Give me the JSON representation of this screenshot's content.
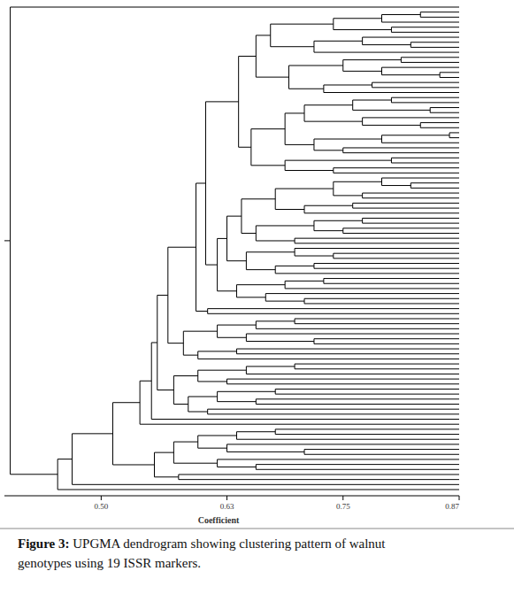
{
  "chart_data": {
    "type": "dendrogram",
    "xlabel": "Coefficient",
    "xlim": [
      0.4,
      0.87
    ],
    "xticks": [
      {
        "value": 0.5,
        "label": "0.50"
      },
      0.63,
      0.75,
      0.87
    ],
    "color": "#000000",
    "tree": [
      0.406,
      null,
      [
        0.455,
        [
          0.47,
          [
            0.512,
            [
              0.54,
              [
                0.552,
                [
                  0.558,
                  [
                    0.569,
                    [
                      0.598,
                      [
                        0.608,
                        [
                          0.642,
                          [
                            0.66,
                            [
                              0.675,
                              [
                                0.74,
                                [
                                  0.79,
                                  [
                                    0.83,
                                    null,
                                    null
                                  ],
                                  null
                                ],
                                [
                                  0.8,
                                  null,
                                  null
                                ]
                              ],
                              [
                                0.72,
                                [
                                  0.77,
                                  null,
                                  [
                                    0.82,
                                    null,
                                    null
                                  ]
                                ],
                                null
                              ]
                            ],
                            [
                              0.694,
                              [
                                0.75,
                                [
                                  0.81,
                                  null,
                                  null
                                ],
                                [
                                  0.79,
                                  null,
                                  [
                                    0.85,
                                    null,
                                    null
                                  ]
                                ]
                              ],
                              [
                                0.73,
                                [
                                  0.78,
                                  null,
                                  null
                                ],
                                null
                              ]
                            ]
                          ],
                          [
                            0.655,
                            [
                              0.69,
                              [
                                0.71,
                                [
                                  0.76,
                                  [
                                    0.8,
                                    null,
                                    null
                                  ],
                                  [
                                    0.84,
                                    null,
                                    null
                                  ]
                                ],
                                [
                                  0.77,
                                  null,
                                  [
                                    0.83,
                                    null,
                                    null
                                  ]
                                ]
                              ],
                              [
                                0.72,
                                [
                                  0.79,
                                  [
                                    0.86,
                                    null,
                                    null
                                  ],
                                  null
                                ],
                                [
                                  0.75,
                                  null,
                                  null
                                ]
                              ]
                            ],
                            [
                              0.69,
                              [
                                0.8,
                                null,
                                null
                              ],
                              [
                                0.74,
                                null,
                                null
                              ]
                            ]
                          ]
                        ],
                        [
                          0.62,
                          [
                            0.63,
                            [
                              0.645,
                              [
                                0.68,
                                [
                                  0.74,
                                  [
                                    0.79,
                                    null,
                                    [
                                      0.82,
                                      null,
                                      null
                                    ]
                                  ],
                                  [
                                    0.77,
                                    null,
                                    null
                                  ]
                                ],
                                [
                                  0.71,
                                  [
                                    0.76,
                                    null,
                                    null
                                  ],
                                  null
                                ]
                              ],
                              [
                                0.66,
                                [
                                  0.72,
                                  [
                                    0.77,
                                    null,
                                    null
                                  ],
                                  [
                                    0.75,
                                    null,
                                    null
                                  ]
                                ],
                                [
                                  0.7,
                                  null,
                                  null
                                ]
                              ]
                            ],
                            [
                              0.65,
                              [
                                0.7,
                                null,
                                [
                                  0.74,
                                  null,
                                  null
                                ]
                              ],
                              [
                                0.68,
                                [
                                  0.72,
                                  null,
                                  null
                                ],
                                null
                              ]
                            ]
                          ],
                          [
                            0.64,
                            [
                              0.69,
                              [
                                0.73,
                                null,
                                null
                              ],
                              null
                            ],
                            [
                              0.67,
                              null,
                              [
                                0.71,
                                null,
                                null
                              ]
                            ]
                          ]
                        ]
                      ],
                      [
                        0.61,
                        null,
                        null
                      ]
                    ],
                    [
                      0.585,
                      [
                        0.62,
                        [
                          0.66,
                          [
                            0.7,
                            null,
                            null
                          ],
                          null
                        ],
                        [
                          0.65,
                          null,
                          [
                            0.72,
                            null,
                            null
                          ]
                        ]
                      ],
                      [
                        0.6,
                        [
                          0.64,
                          null,
                          null
                        ],
                        null
                      ]
                    ]
                  ],
                  [
                    0.575,
                    [
                      0.6,
                      [
                        0.65,
                        [
                          0.7,
                          null,
                          null
                        ],
                        null
                      ],
                      [
                        0.63,
                        null,
                        null
                      ]
                    ],
                    [
                      0.59,
                      [
                        0.62,
                        [
                          0.68,
                          null,
                          null
                        ],
                        [
                          0.66,
                          null,
                          null
                        ]
                      ],
                      [
                        0.61,
                        null,
                        null
                      ]
                    ]
                  ]
                ],
                null
              ],
              null
            ],
            [
              0.555,
              [
                0.575,
                [
                  0.6,
                  [
                    0.64,
                    [
                      0.68,
                      null,
                      null
                    ],
                    null
                  ],
                  [
                    0.63,
                    null,
                    [
                      0.71,
                      null,
                      null
                    ]
                  ]
                ],
                [
                  0.62,
                  null,
                  [
                    0.66,
                    null,
                    null
                  ]
                ]
              ],
              [
                0.58,
                null,
                null
              ]
            ]
          ],
          null
        ],
        null
      ]
    ]
  },
  "caption": {
    "label": "Figure 3:",
    "text": "UPGMA dendrogram showing clustering pattern of walnut genotypes using 19 ISSR markers."
  }
}
